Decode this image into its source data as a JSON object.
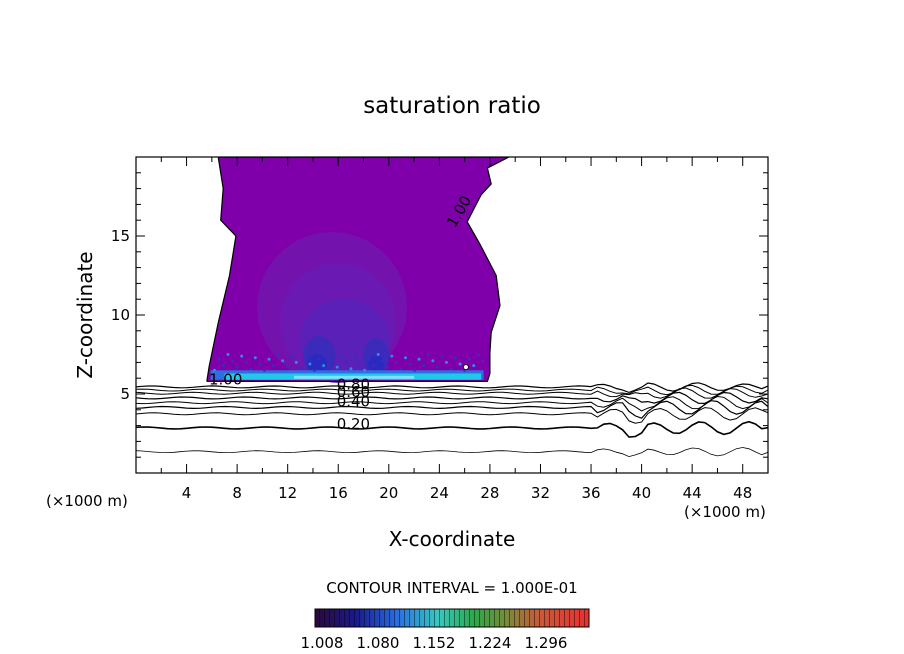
{
  "chart_data": {
    "type": "contour",
    "title": "saturation ratio",
    "xlabel": "X-coordinate",
    "ylabel": "Z-coordinate",
    "x_unit_left": "(×1000 m)",
    "x_unit_right": "(×1000 m)",
    "xlim": [
      0,
      50
    ],
    "ylim": [
      0,
      20
    ],
    "x_ticks": [
      4,
      8,
      12,
      16,
      20,
      24,
      28,
      32,
      36,
      40,
      44,
      48
    ],
    "y_ticks": [
      5,
      10,
      15
    ],
    "contour_labels": [
      {
        "text": "1.00",
        "x": 25.9,
        "y": 16.4,
        "rotate": -60
      },
      {
        "text": "1.00",
        "x": 7.1,
        "y": 5.6,
        "rotate": 0
      },
      {
        "text": "0.80",
        "x": 17.2,
        "y": 5.3,
        "rotate": 0
      },
      {
        "text": "0.60",
        "x": 17.2,
        "y": 4.8,
        "rotate": 0
      },
      {
        "text": "0.40",
        "x": 17.2,
        "y": 4.2,
        "rotate": 0
      },
      {
        "text": "0.20",
        "x": 17.2,
        "y": 2.8,
        "rotate": 0
      }
    ],
    "contour_interval_text": "CONTOUR INTERVAL = 1.000E-01",
    "colorbar": {
      "tick_labels": [
        "1.008",
        "1.080",
        "1.152",
        "1.224",
        "1.296"
      ],
      "min": 1.008,
      "max": 1.296
    },
    "colors": {
      "plume": "#7f00aa",
      "core": "#5a20b8",
      "deep": "#2a2ac0",
      "cyan": "#22c8e8",
      "bright": "#7fe0ff"
    }
  }
}
